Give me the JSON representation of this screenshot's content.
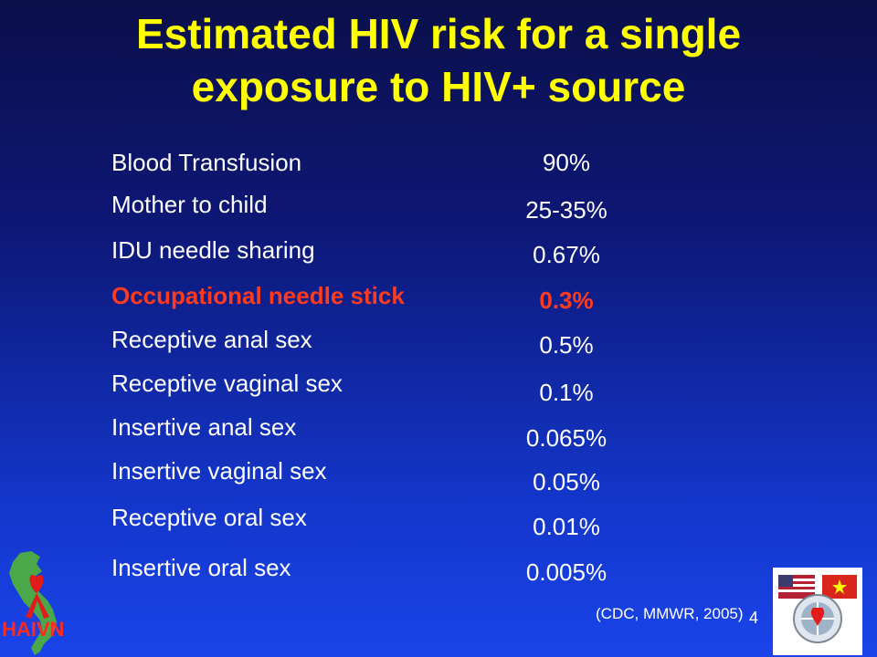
{
  "title": "Estimated HIV risk for a single exposure to HIV+ source",
  "rows": [
    {
      "label": "Blood Transfusion",
      "value": "90%"
    },
    {
      "label": "Mother to child",
      "value": "25-35%"
    },
    {
      "label": "IDU needle sharing",
      "value": "0.67%"
    },
    {
      "label": "Occupational needle stick",
      "value": "0.3%"
    },
    {
      "label": "Receptive anal sex",
      "value": "0.5%"
    },
    {
      "label": "Receptive vaginal sex",
      "value": "0.1%"
    },
    {
      "label": "Insertive anal sex",
      "value": "0.065%"
    },
    {
      "label": "Insertive vaginal sex",
      "value": "0.05%"
    },
    {
      "label": "Receptive oral sex",
      "value": "0.01%"
    },
    {
      "label": "Insertive oral sex",
      "value": "0.005%"
    }
  ],
  "source": "(CDC, MMWR, 2005)",
  "page_number": "4",
  "logos": {
    "left": {
      "text": "HAIVN",
      "icon": "vietnam-map-red-ribbon-icon"
    },
    "right": {
      "icon": "us-vietnam-flags-globe-seal-icon"
    }
  },
  "colors": {
    "title": "#ffff00",
    "text": "#ffffff",
    "highlight": "#ff3b1f"
  }
}
